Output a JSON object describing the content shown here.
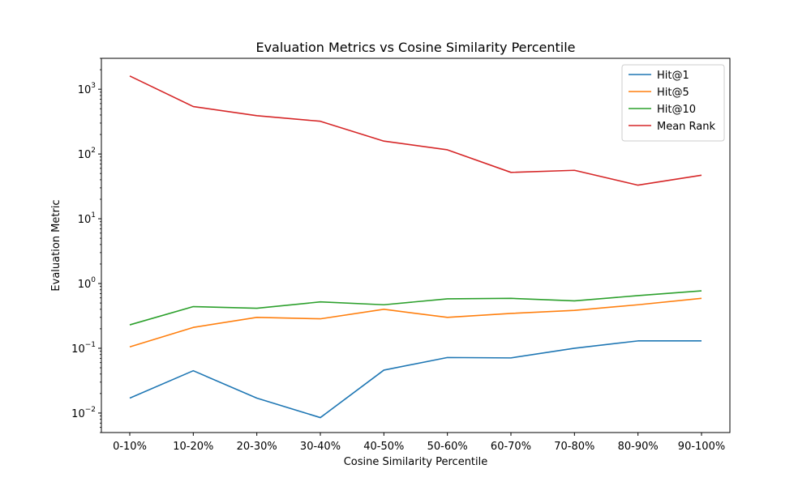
{
  "chart_data": {
    "type": "line",
    "title": "Evaluation Metrics vs Cosine Similarity Percentile",
    "xlabel": "Cosine Similarity Percentile",
    "ylabel": "Evaluation Metric",
    "yscale": "log",
    "ylim": [
      0.005,
      3000
    ],
    "yticks": [
      {
        "value": 0.01,
        "base": "10",
        "exp": "−2"
      },
      {
        "value": 0.1,
        "base": "10",
        "exp": "−1"
      },
      {
        "value": 1,
        "base": "10",
        "exp": "0"
      },
      {
        "value": 10,
        "base": "10",
        "exp": "1"
      },
      {
        "value": 100,
        "base": "10",
        "exp": "2"
      },
      {
        "value": 1000,
        "base": "10",
        "exp": "3"
      }
    ],
    "categories": [
      "0-10%",
      "10-20%",
      "20-30%",
      "30-40%",
      "40-50%",
      "50-60%",
      "60-70%",
      "70-80%",
      "80-90%",
      "90-100%"
    ],
    "legend_position": "top-right",
    "grid": false,
    "series": [
      {
        "name": "Hit@1",
        "color": "#1f77b4",
        "values": [
          0.017,
          0.045,
          0.017,
          0.0085,
          0.046,
          0.072,
          0.071,
          0.1,
          0.13,
          0.13
        ]
      },
      {
        "name": "Hit@5",
        "color": "#ff7f0e",
        "values": [
          0.105,
          0.21,
          0.3,
          0.285,
          0.4,
          0.3,
          0.345,
          0.385,
          0.47,
          0.59
        ]
      },
      {
        "name": "Hit@10",
        "color": "#2ca02c",
        "values": [
          0.23,
          0.44,
          0.415,
          0.52,
          0.47,
          0.58,
          0.59,
          0.54,
          0.65,
          0.77
        ]
      },
      {
        "name": "Mean Rank",
        "color": "#d62728",
        "values": [
          1600,
          540,
          390,
          320,
          158,
          116,
          52,
          56,
          33,
          47
        ]
      }
    ]
  }
}
